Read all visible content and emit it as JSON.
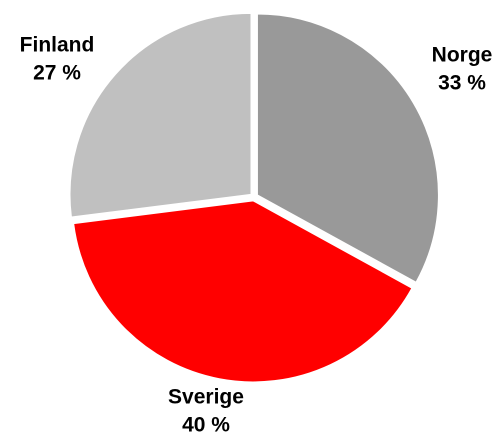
{
  "chart_data": {
    "type": "pie",
    "categories": [
      "Norge",
      "Sverige",
      "Finland"
    ],
    "values": [
      33,
      40,
      27
    ],
    "value_labels": [
      "33 %",
      "40 %",
      "27 %"
    ],
    "colors": [
      "#999999",
      "#ff0000",
      "#c0c0c0"
    ]
  }
}
